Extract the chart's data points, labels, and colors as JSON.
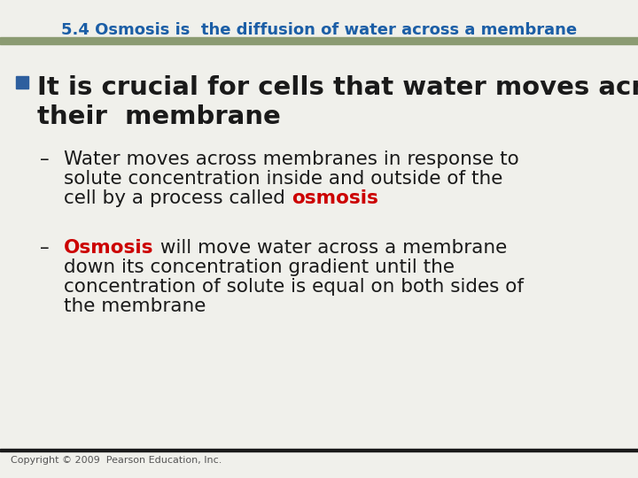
{
  "title": "5.4 Osmosis is  the diffusion of water across a membrane",
  "title_color": "#1B5EA6",
  "title_fontsize": 13,
  "bg_color": "#F0F0EB",
  "header_bar_color": "#8B9B72",
  "bullet_color": "#2E5F9E",
  "bullet_fontsize": 21,
  "sub_fontsize": 15.5,
  "red_color": "#CC0000",
  "dark_color": "#1a1a1a",
  "copyright": "Copyright © 2009  Pearson Education, Inc.",
  "copyright_fontsize": 8,
  "line1_bullet": "It is crucial for cells that water moves across",
  "line2_bullet": "their  membrane",
  "sub1_line1": "Water moves across membranes in response to",
  "sub1_line2": "solute concentration inside and outside of the",
  "sub1_line3_pre": "cell by a process called ",
  "sub1_line3_red": "osmosis",
  "sub2_red": "Osmosis",
  "sub2_line1_rest": " will move water across a membrane",
  "sub2_line2": "down its concentration gradient until the",
  "sub2_line3": "concentration of solute is equal on both sides of",
  "sub2_line4": "the membrane"
}
